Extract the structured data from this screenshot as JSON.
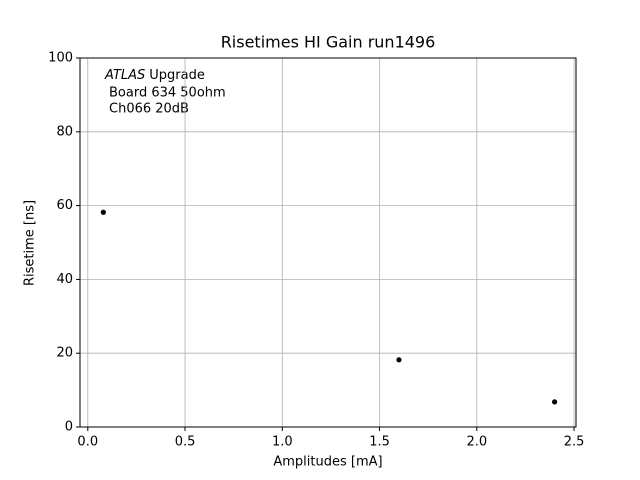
{
  "chart_data": {
    "type": "scatter",
    "title": "Risetimes HI Gain run1496",
    "xlabel": "Amplitudes [mA]",
    "ylabel": "Risetime [ns]",
    "annotation": {
      "italic": "ATLAS",
      "lines": [
        "Upgrade",
        "Board 634 50ohm",
        "Ch066 20dB"
      ]
    },
    "x": [
      0.08,
      1.6,
      2.4
    ],
    "values": [
      58.2,
      18.2,
      6.8
    ],
    "color": "#000000",
    "xlim": [
      -0.04,
      2.51
    ],
    "ylim": [
      0,
      100
    ],
    "xticks": [
      {
        "value": 0,
        "label": "0.0"
      },
      0.5,
      {
        "value": 1,
        "label": "1.0"
      },
      1.5,
      {
        "value": 2,
        "label": "2.0"
      },
      2.5
    ],
    "yticks": [
      0,
      20,
      40,
      60,
      80,
      100
    ],
    "grid": true
  }
}
